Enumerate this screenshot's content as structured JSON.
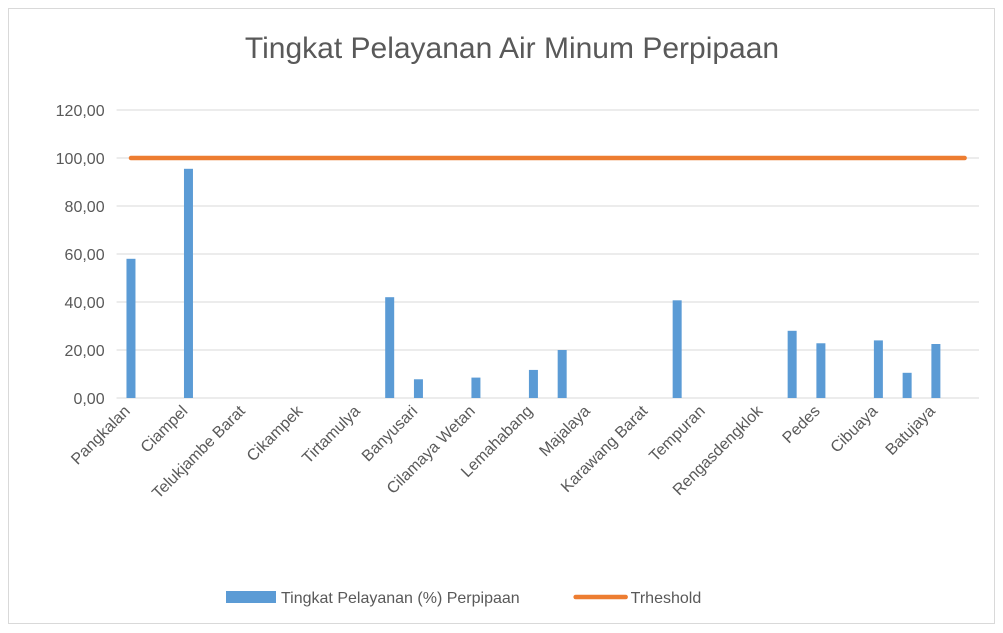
{
  "chart_data": {
    "type": "bar",
    "title": "Tingkat Pelayanan Air  Minum Perpipaan",
    "categories": [
      "Pangkalan",
      null,
      "Ciampel",
      null,
      "Telukjambe Barat",
      null,
      "Cikampek",
      null,
      "Tirtamulya",
      null,
      "Banyusari",
      null,
      "Cilamaya Wetan",
      null,
      "Lemahabang",
      null,
      "Majalaya",
      null,
      "Karawang Barat",
      null,
      "Tempuran",
      null,
      "Rengasdengklok",
      null,
      "Pedes",
      null,
      "Cibuaya",
      null,
      "Batujaya",
      null
    ],
    "series": [
      {
        "name": "Tingkat Pelayanan (%) Perpipaan",
        "color": "#5b9bd5",
        "type": "bar",
        "values": [
          58,
          0,
          95.5,
          0,
          0,
          0,
          0,
          0,
          0,
          42,
          7.8,
          0,
          8.5,
          0,
          11.7,
          20,
          0,
          0,
          0,
          40.7,
          0,
          0,
          0,
          28,
          22.8,
          0,
          24,
          10.5,
          22.5,
          0
        ]
      },
      {
        "name": "Trheshold",
        "color": "#ed7d31",
        "type": "line",
        "values": [
          100,
          100,
          100,
          100,
          100,
          100,
          100,
          100,
          100,
          100,
          100,
          100,
          100,
          100,
          100,
          100,
          100,
          100,
          100,
          100,
          100,
          100,
          100,
          100,
          100,
          100,
          100,
          100,
          100,
          100
        ]
      }
    ],
    "ylim": [
      0,
      120
    ],
    "yticks": [
      {
        "value": 0,
        "label": "0,00"
      },
      {
        "value": 20,
        "label": "20,00"
      },
      {
        "value": 40,
        "label": "40,00"
      },
      {
        "value": 60,
        "label": "60,00"
      },
      {
        "value": 80,
        "label": "80,00"
      },
      {
        "value": 100,
        "label": "100,00"
      },
      {
        "value": 120,
        "label": "120,00"
      }
    ],
    "grid": true,
    "legend": "bottom"
  }
}
